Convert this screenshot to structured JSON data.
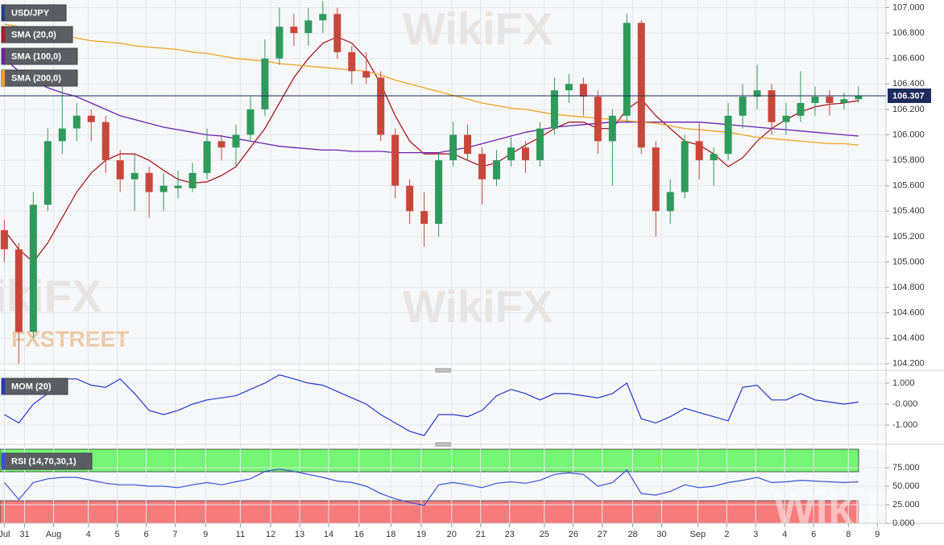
{
  "watermarks": [
    "WikiFX",
    "FXSTREET"
  ],
  "chart_data": [
    {
      "type": "candlestick",
      "title": "USD/JPY",
      "up_color": "#2e9a5c",
      "down_color": "#c9473a",
      "grid": true,
      "open": [
        105.25,
        105.1,
        104.45,
        105.45,
        105.95,
        106.05,
        106.15,
        106.1,
        105.8,
        105.65,
        105.7,
        105.55,
        105.58,
        105.58,
        105.7,
        105.95,
        105.9,
        106.0,
        106.2,
        106.6,
        106.85,
        106.8,
        106.9,
        106.95,
        106.65,
        106.5,
        106.45,
        106.0,
        105.6,
        105.4,
        105.3,
        105.8,
        106.0,
        105.85,
        105.65,
        105.8,
        105.9,
        105.8,
        106.05,
        106.35,
        106.4,
        106.3,
        105.95,
        106.15,
        106.88,
        105.9,
        105.4,
        105.55,
        105.95,
        105.8,
        105.85,
        106.15,
        106.3,
        106.35,
        106.1,
        106.15,
        106.25,
        106.3,
        106.25,
        106.28
      ],
      "high": [
        105.33,
        105.15,
        105.55,
        106.05,
        106.4,
        106.25,
        106.2,
        106.15,
        105.88,
        105.85,
        105.75,
        105.7,
        105.72,
        105.78,
        106.05,
        106.0,
        106.08,
        106.3,
        106.75,
        107.0,
        106.95,
        107.0,
        107.05,
        107.0,
        106.7,
        106.65,
        106.5,
        106.05,
        105.65,
        105.55,
        105.85,
        106.1,
        106.08,
        105.9,
        105.88,
        105.98,
        105.95,
        106.1,
        106.45,
        106.48,
        106.45,
        106.35,
        106.2,
        106.95,
        106.9,
        105.95,
        105.65,
        106.0,
        106.1,
        105.9,
        106.25,
        106.4,
        106.55,
        106.4,
        106.25,
        106.5,
        106.38,
        106.35,
        106.33,
        106.38
      ],
      "low": [
        105.0,
        104.2,
        104.4,
        105.4,
        105.85,
        105.95,
        105.95,
        105.7,
        105.55,
        105.4,
        105.35,
        105.4,
        105.5,
        105.55,
        105.65,
        105.8,
        105.75,
        105.95,
        106.15,
        106.55,
        106.7,
        106.7,
        106.8,
        106.6,
        106.4,
        106.4,
        105.95,
        105.5,
        105.3,
        105.12,
        105.2,
        105.75,
        105.8,
        105.45,
        105.6,
        105.75,
        105.7,
        105.75,
        106.0,
        106.25,
        106.15,
        105.85,
        105.6,
        106.1,
        105.85,
        105.2,
        105.3,
        105.5,
        105.65,
        105.6,
        105.8,
        106.05,
        106.2,
        106.0,
        106.0,
        106.1,
        106.15,
        106.15,
        106.2,
        106.25
      ],
      "close": [
        105.1,
        104.45,
        105.45,
        105.95,
        106.05,
        106.15,
        106.1,
        105.8,
        105.65,
        105.7,
        105.55,
        105.6,
        105.6,
        105.7,
        105.95,
        105.9,
        106.0,
        106.2,
        106.6,
        106.85,
        106.8,
        106.9,
        106.95,
        106.65,
        106.5,
        106.45,
        106.0,
        105.6,
        105.4,
        105.3,
        105.8,
        106.0,
        105.85,
        105.65,
        105.8,
        105.9,
        105.8,
        106.05,
        106.35,
        106.4,
        106.3,
        105.95,
        106.15,
        106.88,
        105.9,
        105.4,
        105.55,
        105.95,
        105.8,
        105.85,
        106.15,
        106.3,
        106.35,
        106.1,
        106.15,
        106.25,
        106.3,
        106.25,
        106.28,
        106.307
      ],
      "series": [
        {
          "name": "SMA (20,0)",
          "color": "#a61c1c",
          "values": [
            105.25,
            105.1,
            105.0,
            105.15,
            105.35,
            105.55,
            105.7,
            105.8,
            105.85,
            105.85,
            105.8,
            105.72,
            105.65,
            105.62,
            105.63,
            105.68,
            105.75,
            105.9,
            106.05,
            106.25,
            106.45,
            106.6,
            106.72,
            106.77,
            106.72,
            106.6,
            106.4,
            106.15,
            105.95,
            105.85,
            105.85,
            105.85,
            105.8,
            105.75,
            105.78,
            105.85,
            105.92,
            105.98,
            106.05,
            106.1,
            106.1,
            106.05,
            106.05,
            106.2,
            106.28,
            106.15,
            106.05,
            105.95,
            105.92,
            105.85,
            105.75,
            105.82,
            105.95,
            106.05,
            106.12,
            106.18,
            106.22,
            106.24,
            106.25,
            106.27
          ]
        },
        {
          "name": "SMA (100,0)",
          "color": "#6b1fb0",
          "values": [
            106.6,
            106.5,
            106.42,
            106.37,
            106.33,
            106.3,
            106.25,
            106.2,
            106.15,
            106.12,
            106.09,
            106.06,
            106.04,
            106.02,
            106.0,
            105.99,
            105.97,
            105.95,
            105.93,
            105.91,
            105.9,
            105.89,
            105.88,
            105.88,
            105.87,
            105.87,
            105.87,
            105.86,
            105.86,
            105.86,
            105.86,
            105.88,
            105.9,
            105.93,
            105.96,
            105.99,
            106.02,
            106.04,
            106.06,
            106.07,
            106.08,
            106.09,
            106.1,
            106.1,
            106.1,
            106.1,
            106.1,
            106.1,
            106.1,
            106.09,
            106.08,
            106.07,
            106.06,
            106.05,
            106.04,
            106.03,
            106.02,
            106.01,
            106.0,
            105.99
          ]
        },
        {
          "name": "SMA (200,0)",
          "color": "#f0a21e",
          "values": [
            106.87,
            106.85,
            106.83,
            106.81,
            106.79,
            106.76,
            106.74,
            106.73,
            106.72,
            106.7,
            106.69,
            106.68,
            106.67,
            106.65,
            106.64,
            106.62,
            106.6,
            106.59,
            106.58,
            106.56,
            106.55,
            106.54,
            106.53,
            106.52,
            106.51,
            106.5,
            106.47,
            106.43,
            106.4,
            106.37,
            106.34,
            106.31,
            106.28,
            106.25,
            106.23,
            106.21,
            106.2,
            106.18,
            106.16,
            106.15,
            106.14,
            106.13,
            106.12,
            106.11,
            106.1,
            106.09,
            106.07,
            106.05,
            106.04,
            106.03,
            106.02,
            106.0,
            105.98,
            105.97,
            105.96,
            105.95,
            105.94,
            105.93,
            105.93,
            105.92
          ]
        }
      ],
      "ylim": [
        104.18,
        107.06
      ],
      "yticks": [
        {
          "value": 107.0,
          "label": "107.000"
        },
        {
          "value": 106.8,
          "label": "106.800"
        },
        {
          "value": 106.6,
          "label": "106.600"
        },
        {
          "value": 106.4,
          "label": "106.400"
        },
        {
          "value": 106.2,
          "label": "106.200"
        },
        {
          "value": 106.0,
          "label": "106.000"
        },
        {
          "value": 105.8,
          "label": "105.800"
        },
        {
          "value": 105.6,
          "label": "105.600"
        },
        {
          "value": 105.4,
          "label": "105.400"
        },
        {
          "value": 105.2,
          "label": "105.200"
        },
        {
          "value": 105.0,
          "label": "105.000"
        },
        {
          "value": 104.8,
          "label": "104.800"
        },
        {
          "value": 104.6,
          "label": "104.600"
        },
        {
          "value": 104.4,
          "label": "104.400"
        },
        {
          "value": 104.2,
          "label": "104.200"
        }
      ],
      "xlim": [
        -0.3,
        60.9
      ],
      "xticks": [
        {
          "value": 0.0,
          "label": "Jul"
        },
        {
          "value": 1.4,
          "label": "31"
        },
        {
          "value": 3.4,
          "label": "Aug"
        },
        {
          "value": 5.8,
          "label": "4"
        },
        {
          "value": 7.8,
          "label": "5"
        },
        {
          "value": 9.8,
          "label": "6"
        },
        {
          "value": 11.8,
          "label": "7"
        },
        {
          "value": 13.9,
          "label": "9"
        },
        {
          "value": 16.3,
          "label": "11"
        },
        {
          "value": 18.4,
          "label": "12"
        },
        {
          "value": 20.4,
          "label": "13"
        },
        {
          "value": 22.4,
          "label": "14"
        },
        {
          "value": 24.5,
          "label": "16"
        },
        {
          "value": 26.7,
          "label": "18"
        },
        {
          "value": 28.8,
          "label": "19"
        },
        {
          "value": 30.9,
          "label": "20"
        },
        {
          "value": 32.9,
          "label": "21"
        },
        {
          "value": 34.9,
          "label": "23"
        },
        {
          "value": 37.3,
          "label": "25"
        },
        {
          "value": 39.3,
          "label": "26"
        },
        {
          "value": 41.3,
          "label": "27"
        },
        {
          "value": 43.4,
          "label": "28"
        },
        {
          "value": 45.4,
          "label": "30"
        },
        {
          "value": 47.9,
          "label": "Sep"
        },
        {
          "value": 49.9,
          "label": "2"
        },
        {
          "value": 51.9,
          "label": "3"
        },
        {
          "value": 53.9,
          "label": "4"
        },
        {
          "value": 55.9,
          "label": "6"
        },
        {
          "value": 58.3,
          "label": "8"
        },
        {
          "value": 60.3,
          "label": "9"
        }
      ]
    },
    {
      "type": "line",
      "title": "MOM (20)",
      "grid": true,
      "series": [
        {
          "color": "#2236c8",
          "values": [
            -0.5,
            -0.9,
            0.0,
            0.5,
            1.2,
            1.2,
            0.9,
            0.8,
            1.2,
            0.5,
            -0.3,
            -0.5,
            -0.3,
            0.0,
            0.2,
            0.3,
            0.4,
            0.7,
            1.0,
            1.4,
            1.2,
            1.0,
            0.9,
            0.6,
            0.3,
            0.0,
            -0.5,
            -0.9,
            -1.3,
            -1.5,
            -0.5,
            -0.5,
            -0.6,
            -0.3,
            0.4,
            0.7,
            0.5,
            0.2,
            0.5,
            0.5,
            0.4,
            0.3,
            0.5,
            1.0,
            -0.7,
            -0.9,
            -0.6,
            -0.2,
            -0.4,
            -0.6,
            -0.8,
            0.8,
            0.9,
            0.2,
            0.2,
            0.5,
            0.2,
            0.1,
            0.0,
            0.1
          ]
        }
      ],
      "ylim": [
        -1.73,
        1.42
      ],
      "yticks": [
        {
          "value": 1,
          "label": "1.000"
        },
        {
          "value": 0,
          "label": "-0.000"
        },
        {
          "value": -1,
          "label": "-1.000"
        }
      ]
    },
    {
      "type": "line",
      "title": "RSI (14,70,30,1)",
      "grid": true,
      "series": [
        {
          "color": "#3552d0",
          "values": [
            55,
            32,
            55,
            60,
            62,
            62,
            58,
            54,
            52,
            52,
            50,
            50,
            48,
            52,
            55,
            52,
            56,
            60,
            70,
            73,
            70,
            66,
            62,
            57,
            55,
            50,
            40,
            33,
            28,
            24,
            52,
            55,
            52,
            48,
            54,
            56,
            54,
            58,
            66,
            68,
            66,
            50,
            55,
            72,
            40,
            38,
            43,
            52,
            48,
            50,
            55,
            58,
            62,
            55,
            56,
            58,
            57,
            56,
            55,
            56
          ]
        }
      ],
      "ylim": [
        0,
        100
      ],
      "yticks": [
        {
          "value": 75,
          "label": "75.000"
        },
        {
          "value": 50,
          "label": "50.000"
        },
        {
          "value": 25,
          "label": "25.000"
        },
        {
          "value": 0,
          "label": "0.000"
        }
      ]
    }
  ]
}
